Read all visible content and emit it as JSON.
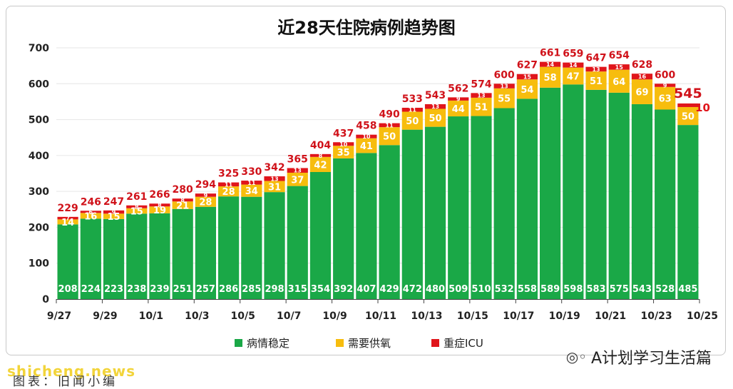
{
  "chart_data": {
    "type": "bar",
    "stacked": true,
    "title": "近28天住院病例趋势图",
    "ylim": [
      0,
      700
    ],
    "yticks": [
      0,
      100,
      200,
      300,
      400,
      500,
      600,
      700
    ],
    "grid": true,
    "legend_position": "bottom",
    "x_tick_labels": [
      "9/27",
      "9/29",
      "10/1",
      "10/3",
      "10/5",
      "10/7",
      "10/9",
      "10/11",
      "10/13",
      "10/15",
      "10/17",
      "10/19",
      "10/21",
      "10/23",
      "10/25"
    ],
    "series": [
      {
        "name": "病情稳定",
        "color": "#1aa847",
        "values": [
          208,
          224,
          223,
          238,
          239,
          251,
          257,
          286,
          285,
          298,
          315,
          354,
          392,
          407,
          429,
          472,
          480,
          509,
          510,
          532,
          558,
          589,
          598,
          583,
          575,
          543,
          528,
          485
        ]
      },
      {
        "name": "需要供氧",
        "color": "#f7bd0e",
        "values": [
          14,
          16,
          15,
          15,
          19,
          21,
          28,
          28,
          34,
          31,
          37,
          42,
          35,
          41,
          50,
          50,
          50,
          44,
          51,
          55,
          54,
          58,
          47,
          51,
          64,
          69,
          63,
          50
        ]
      },
      {
        "name": "重症ICU",
        "color": "#e0151b",
        "values": [
          7,
          6,
          9,
          8,
          8,
          8,
          9,
          11,
          11,
          13,
          13,
          8,
          10,
          10,
          11,
          11,
          13,
          9,
          13,
          13,
          15,
          14,
          14,
          13,
          15,
          16,
          9,
          10
        ]
      }
    ],
    "totals": [
      229,
      246,
      247,
      261,
      266,
      280,
      294,
      325,
      330,
      342,
      365,
      404,
      437,
      458,
      490,
      533,
      543,
      562,
      574,
      600,
      627,
      661,
      659,
      647,
      654,
      628,
      600,
      545
    ]
  },
  "watermarks": {
    "right": "A计划学习生活篇",
    "right_icon": "wechat-icon",
    "left": "shicheng.news",
    "caption": "图表：旧闻小编"
  }
}
